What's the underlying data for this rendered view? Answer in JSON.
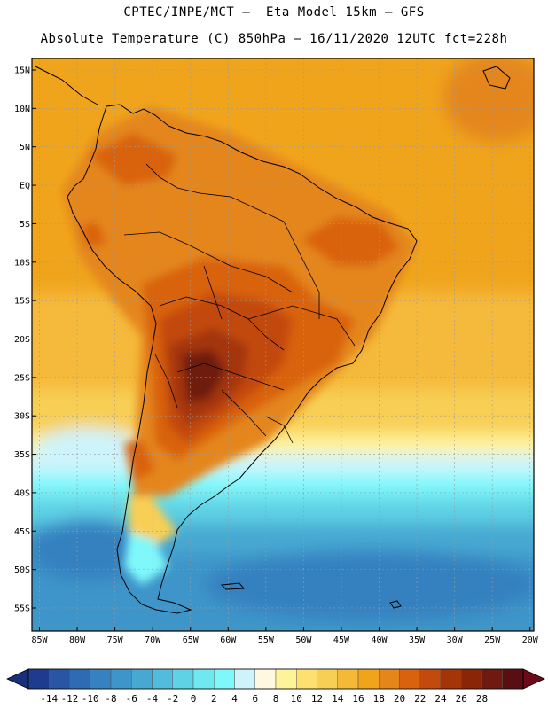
{
  "header": {
    "line1": "CPTEC/INPE/MCT –  Eta Model 15km – GFS",
    "line2": "Absolute Temperature (C) 850hPa – 16/11/2020 12UTC fct=228h"
  },
  "map": {
    "lat_labels": [
      "15N",
      "10N",
      "5N",
      "EQ",
      "5S",
      "10S",
      "15S",
      "20S",
      "25S",
      "30S",
      "35S",
      "40S",
      "45S",
      "50S",
      "55S"
    ],
    "lon_labels": [
      "85W",
      "80W",
      "75W",
      "70W",
      "65W",
      "60W",
      "55W",
      "50W",
      "45W",
      "40W",
      "35W",
      "30W",
      "25W",
      "20W"
    ],
    "lon_range": [
      -86,
      -19.5
    ],
    "lat_range": [
      -58,
      16.5
    ]
  },
  "colorbar": {
    "labels": [
      "-14",
      "-12",
      "-10",
      "-8",
      "-6",
      "-4",
      "-2",
      "0",
      "2",
      "4",
      "6",
      "8",
      "10",
      "12",
      "14",
      "16",
      "18",
      "20",
      "22",
      "24",
      "26",
      "28"
    ],
    "colors": [
      "#1f3b8f",
      "#2a54a4",
      "#2f6bb4",
      "#3681c0",
      "#3d95c9",
      "#47a9d2",
      "#52bcdc",
      "#5fd2e5",
      "#6fe8f0",
      "#7ff8fb",
      "#cdf4fb",
      "#fff8e0",
      "#fff39a",
      "#fde070",
      "#f8cf55",
      "#f5b93a",
      "#f0a41c",
      "#e4861a",
      "#d9620e",
      "#c24a0c",
      "#a43508",
      "#8a2508",
      "#6e1a10",
      "#5a0e12"
    ],
    "under_color": "#1a2f7a",
    "over_color": "#6e0a18"
  }
}
